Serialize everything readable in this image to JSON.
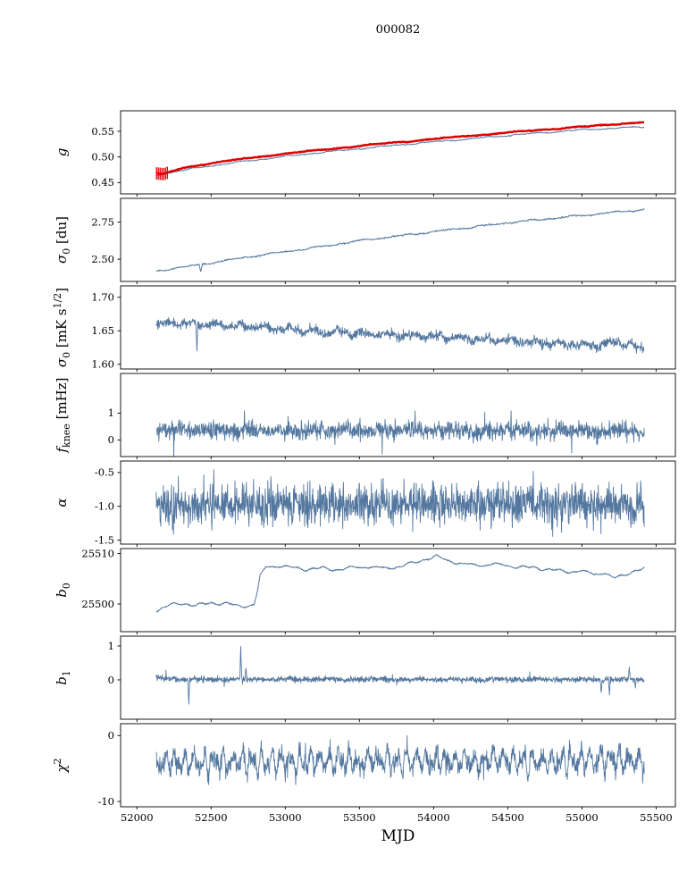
{
  "figure": {
    "title": "000082",
    "xlabel": "MJD"
  },
  "chart_data": {
    "type": "line",
    "title": "000082",
    "xlabel": "MJD",
    "xlim": [
      51890,
      55630
    ],
    "xticks": [
      52000,
      52500,
      53000,
      53500,
      54000,
      54500,
      55000,
      55500
    ],
    "xdata_range": [
      52130,
      55420
    ],
    "line_color": "#53779f",
    "accent_red": "#dd0000",
    "panels": [
      {
        "id": "g",
        "ylabel": [
          {
            "t": "g",
            "i": true
          }
        ],
        "yticks": [
          0.45,
          0.5,
          0.55
        ],
        "ytick_fmt": 2,
        "ylim": [
          0.428,
          0.59
        ],
        "series": [
          {
            "name": "g-fit",
            "color": "#53779f",
            "width": 1.0,
            "n": 700,
            "seed": 11,
            "white": 0.0005,
            "slow": 0.0009,
            "slow_cycles": 10,
            "trend": [
              [
                52130,
                0.4645
              ],
              [
                52300,
                0.4735
              ],
              [
                52500,
                0.483
              ],
              [
                52750,
                0.4925
              ],
              [
                53000,
                0.501
              ],
              [
                53250,
                0.509
              ],
              [
                53500,
                0.516
              ],
              [
                53750,
                0.523
              ],
              [
                54000,
                0.5295
              ],
              [
                54250,
                0.5355
              ],
              [
                54500,
                0.542
              ],
              [
                54750,
                0.5475
              ],
              [
                55000,
                0.553
              ],
              [
                55150,
                0.555
              ],
              [
                55250,
                0.5565
              ],
              [
                55330,
                0.5575
              ],
              [
                55420,
                0.559
              ]
            ]
          },
          {
            "name": "g-smoothed",
            "color": "#dd0000",
            "width": 2.4,
            "n": 700,
            "seed": 12,
            "white": 0.0004,
            "slow": 0.0006,
            "slow_cycles": 8,
            "trend": [
              [
                52130,
                0.468
              ],
              [
                52180,
                0.4665
              ],
              [
                52300,
                0.478
              ],
              [
                52500,
                0.488
              ],
              [
                52750,
                0.4975
              ],
              [
                53000,
                0.5065
              ],
              [
                53250,
                0.514
              ],
              [
                53500,
                0.5215
              ],
              [
                53750,
                0.5285
              ],
              [
                54000,
                0.535
              ],
              [
                54250,
                0.5415
              ],
              [
                54500,
                0.5475
              ],
              [
                54750,
                0.5535
              ],
              [
                55000,
                0.559
              ],
              [
                55150,
                0.562
              ],
              [
                55250,
                0.5645
              ],
              [
                55330,
                0.566
              ],
              [
                55420,
                0.568
              ]
            ],
            "errorbars": {
              "x0": 52132,
              "x1": 52205,
              "count": 7,
              "yerr": 0.012
            }
          }
        ]
      },
      {
        "id": "sigma0-du",
        "ylabel": [
          {
            "t": "σ",
            "i": true
          },
          {
            "t": "0",
            "sub": true
          },
          {
            "t": " [du]"
          }
        ],
        "yticks": [
          2.5,
          2.75
        ],
        "ytick_fmt": 2,
        "ylim": [
          2.35,
          2.91
        ],
        "series": [
          {
            "name": "sigma0-du",
            "color": "#53779f",
            "width": 1.0,
            "n": 900,
            "seed": 21,
            "white": 0.0025,
            "slow": 0.0035,
            "slow_cycles": 12,
            "spikes": [
              {
                "x": 52430,
                "dy": -0.05,
                "w": 2
              }
            ],
            "trend": [
              [
                52130,
                2.42
              ],
              [
                52300,
                2.445
              ],
              [
                52500,
                2.475
              ],
              [
                52750,
                2.515
              ],
              [
                53000,
                2.55
              ],
              [
                53250,
                2.585
              ],
              [
                53500,
                2.625
              ],
              [
                53750,
                2.655
              ],
              [
                54000,
                2.685
              ],
              [
                54250,
                2.715
              ],
              [
                54500,
                2.745
              ],
              [
                54750,
                2.77
              ],
              [
                55000,
                2.795
              ],
              [
                55200,
                2.815
              ],
              [
                55330,
                2.825
              ],
              [
                55420,
                2.835
              ]
            ]
          }
        ]
      },
      {
        "id": "sigma0-mK",
        "ylabel": [
          {
            "t": "σ",
            "i": true
          },
          {
            "t": "0",
            "sub": true
          },
          {
            "t": " [mK s"
          },
          {
            "t": "1/2",
            "sup": true
          },
          {
            "t": "]"
          }
        ],
        "yticks": [
          1.6,
          1.65,
          1.7
        ],
        "ytick_fmt": 2,
        "ylim": [
          1.593,
          1.717
        ],
        "series": [
          {
            "name": "sigma0-mK",
            "color": "#53779f",
            "width": 0.9,
            "n": 1500,
            "seed": 31,
            "white": 0.0035,
            "slow": 0.0028,
            "slow_cycles": 18,
            "spikes": [
              {
                "x": 52405,
                "dy": -0.042,
                "w": 2
              }
            ],
            "trend": [
              [
                52130,
                1.658
              ],
              [
                52250,
                1.663
              ],
              [
                52350,
                1.661
              ],
              [
                52500,
                1.658
              ],
              [
                52700,
                1.6575
              ],
              [
                53000,
                1.652
              ],
              [
                53300,
                1.648
              ],
              [
                53600,
                1.6455
              ],
              [
                54000,
                1.642
              ],
              [
                54300,
                1.638
              ],
              [
                54600,
                1.634
              ],
              [
                54900,
                1.63
              ],
              [
                55100,
                1.628
              ],
              [
                55250,
                1.633
              ],
              [
                55420,
                1.623
              ]
            ]
          }
        ]
      },
      {
        "id": "fknee",
        "ylabel": [
          {
            "t": "f",
            "i": true
          },
          {
            "t": "knee",
            "sub": true
          },
          {
            "t": " [mHz]"
          }
        ],
        "yticks": [
          0,
          1
        ],
        "ytick_fmt": 0,
        "ylim": [
          -0.62,
          2.48
        ],
        "series": [
          {
            "name": "fknee",
            "color": "#53779f",
            "width": 0.9,
            "n": 1500,
            "seed": 41,
            "white": 0.16,
            "slow": 0.03,
            "slow_cycles": 12,
            "tail_prob": 0.03,
            "tail_mult": 2.6,
            "trend": [
              [
                52130,
                0.4
              ],
              [
                52400,
                0.36
              ],
              [
                55420,
                0.34
              ]
            ]
          }
        ]
      },
      {
        "id": "alpha",
        "ylabel": [
          {
            "t": "α",
            "i": true
          }
        ],
        "yticks": [
          -1.5,
          -1.0,
          -0.5
        ],
        "ytick_fmt": 1,
        "ylim": [
          -1.56,
          -0.33
        ],
        "series": [
          {
            "name": "alpha",
            "color": "#53779f",
            "width": 0.9,
            "n": 1500,
            "seed": 51,
            "white": 0.15,
            "slow": 0.02,
            "slow_cycles": 15,
            "tail_prob": 0.02,
            "tail_mult": 2.0,
            "trend": [
              [
                52130,
                -0.98
              ],
              [
                55420,
                -0.97
              ]
            ]
          }
        ]
      },
      {
        "id": "b0",
        "ylabel": [
          {
            "t": "b",
            "i": true
          },
          {
            "t": "0",
            "sub": true
          }
        ],
        "yticks": [
          25500,
          25510
        ],
        "ytick_fmt": 0,
        "ylim": [
          25494.5,
          25511.0
        ],
        "series": [
          {
            "name": "b0",
            "color": "#53779f",
            "width": 1.0,
            "n": 1200,
            "seed": 61,
            "white": 0.06,
            "slow": 0.22,
            "slow_cycles": 16,
            "trend": [
              [
                52130,
                25498.6
              ],
              [
                52170,
                25499.3
              ],
              [
                52250,
                25499.9
              ],
              [
                52320,
                25500.1
              ],
              [
                52400,
                25499.7
              ],
              [
                52500,
                25500.2
              ],
              [
                52600,
                25500.1
              ],
              [
                52700,
                25499.5
              ],
              [
                52790,
                25499.9
              ],
              [
                52810,
                25502.0
              ],
              [
                52830,
                25505.5
              ],
              [
                52870,
                25507.3
              ],
              [
                52950,
                25507.6
              ],
              [
                53050,
                25507.2
              ],
              [
                53150,
                25506.9
              ],
              [
                53250,
                25507.1
              ],
              [
                53350,
                25506.8
              ],
              [
                53450,
                25507.2
              ],
              [
                53550,
                25507.4
              ],
              [
                53650,
                25507.1
              ],
              [
                53750,
                25507.3
              ],
              [
                53850,
                25508.0
              ],
              [
                53950,
                25509.0
              ],
              [
                54020,
                25509.4
              ],
              [
                54100,
                25508.6
              ],
              [
                54200,
                25507.9
              ],
              [
                54300,
                25507.7
              ],
              [
                54400,
                25507.9
              ],
              [
                54500,
                25507.6
              ],
              [
                54600,
                25507.3
              ],
              [
                54700,
                25507.1
              ],
              [
                54800,
                25506.8
              ],
              [
                54900,
                25506.4
              ],
              [
                55000,
                25506.6
              ],
              [
                55080,
                25505.8
              ],
              [
                55150,
                25506.3
              ],
              [
                55220,
                25505.1
              ],
              [
                55280,
                25505.6
              ],
              [
                55340,
                25506.5
              ],
              [
                55420,
                25507.1
              ]
            ]
          }
        ]
      },
      {
        "id": "b1",
        "ylabel": [
          {
            "t": "b",
            "i": true
          },
          {
            "t": "1",
            "sub": true
          }
        ],
        "yticks": [
          0,
          1
        ],
        "ytick_fmt": 0,
        "ylim": [
          -1.16,
          1.29
        ],
        "series": [
          {
            "name": "b1",
            "color": "#53779f",
            "width": 0.9,
            "n": 1600,
            "seed": 71,
            "white": 0.04,
            "slow": 0.012,
            "slow_cycles": 10,
            "tail_prob": 0.012,
            "tail_mult": 3,
            "spikes": [
              {
                "x": 52350,
                "dy": -0.72,
                "w": 2
              },
              {
                "x": 52700,
                "dy": 0.95,
                "w": 2
              },
              {
                "x": 52735,
                "dy": 0.4,
                "w": 2
              },
              {
                "x": 55130,
                "dy": -0.4,
                "w": 2
              },
              {
                "x": 55185,
                "dy": -0.45,
                "w": 2
              },
              {
                "x": 55320,
                "dy": 0.3,
                "w": 2
              },
              {
                "x": 55360,
                "dy": -0.25,
                "w": 2
              }
            ],
            "trend": [
              [
                52130,
                0.1
              ],
              [
                52170,
                0.03
              ],
              [
                52250,
                0.02
              ],
              [
                55420,
                0.01
              ]
            ]
          }
        ]
      },
      {
        "id": "chi2",
        "ylabel": [
          {
            "t": "χ",
            "i": true
          },
          {
            "t": "2",
            "sup": true
          }
        ],
        "yticks": [
          -10,
          0
        ],
        "ytick_fmt": 0,
        "ylim": [
          -10.8,
          1.8
        ],
        "series": [
          {
            "name": "chi2",
            "color": "#53779f",
            "width": 0.9,
            "n": 1600,
            "seed": 81,
            "white": 0.7,
            "slow": 1.15,
            "slow_cycles": 42,
            "tail_prob": 0.025,
            "tail_mult": 1.9,
            "trend": [
              [
                52130,
                -4.1
              ],
              [
                53000,
                -4.0
              ],
              [
                54000,
                -3.9
              ],
              [
                55420,
                -3.7
              ]
            ]
          }
        ]
      }
    ]
  }
}
